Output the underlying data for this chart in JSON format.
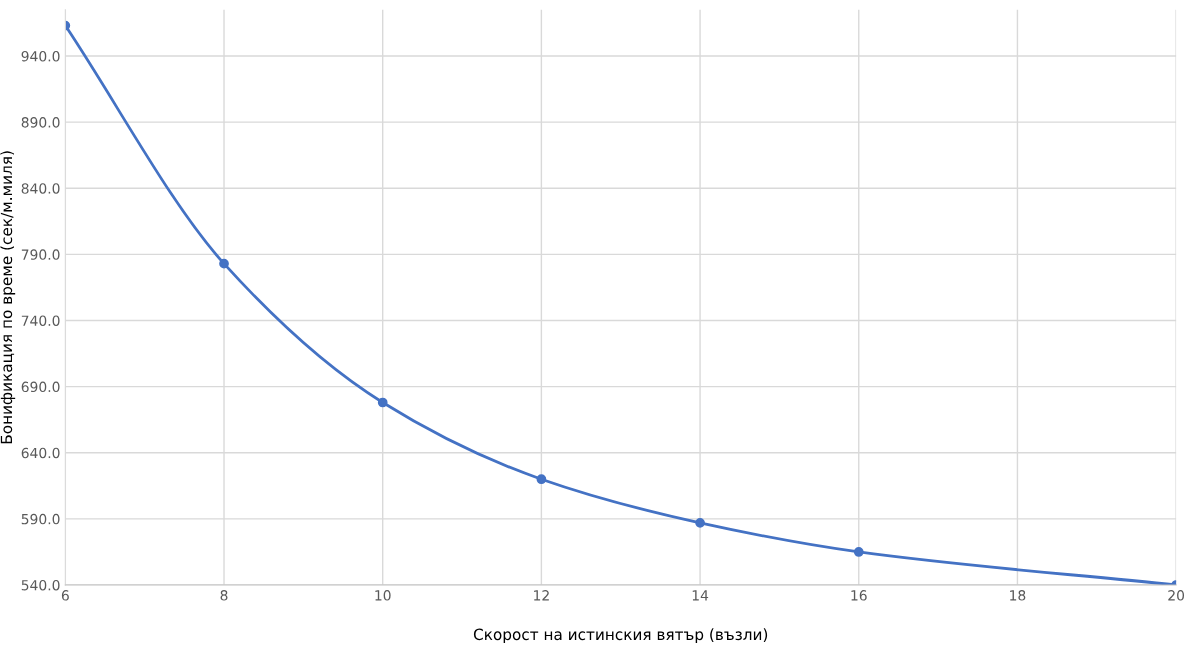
{
  "chart_data": {
    "type": "line",
    "xlabel": "Скорост на истинския вятър (възли)",
    "ylabel": "Бонификация по време (сек/м.миля)",
    "x": [
      6,
      8,
      10,
      12,
      14,
      16,
      20
    ],
    "series": [
      {
        "color": "#4472c4",
        "values": [
          963,
          783,
          678,
          620,
          587,
          565,
          540
        ]
      }
    ],
    "xlim": [
      6,
      20
    ],
    "xticks": [
      6,
      8,
      10,
      12,
      14,
      16,
      18,
      20
    ],
    "ylim": [
      540,
      975
    ],
    "yticks": [
      {
        "value": 540,
        "label": "540.0"
      },
      {
        "value": 590,
        "label": "590.0"
      },
      {
        "value": 640,
        "label": "640.0"
      },
      {
        "value": 690,
        "label": "690.0"
      },
      {
        "value": 740,
        "label": "740.0"
      },
      {
        "value": 790,
        "label": "790.0"
      },
      {
        "value": 840,
        "label": "840.0"
      },
      {
        "value": 890,
        "label": "890.0"
      },
      {
        "value": 940,
        "label": "940.0"
      }
    ],
    "grid": true,
    "marker": "circle",
    "line_style": "solid",
    "legend": false
  }
}
